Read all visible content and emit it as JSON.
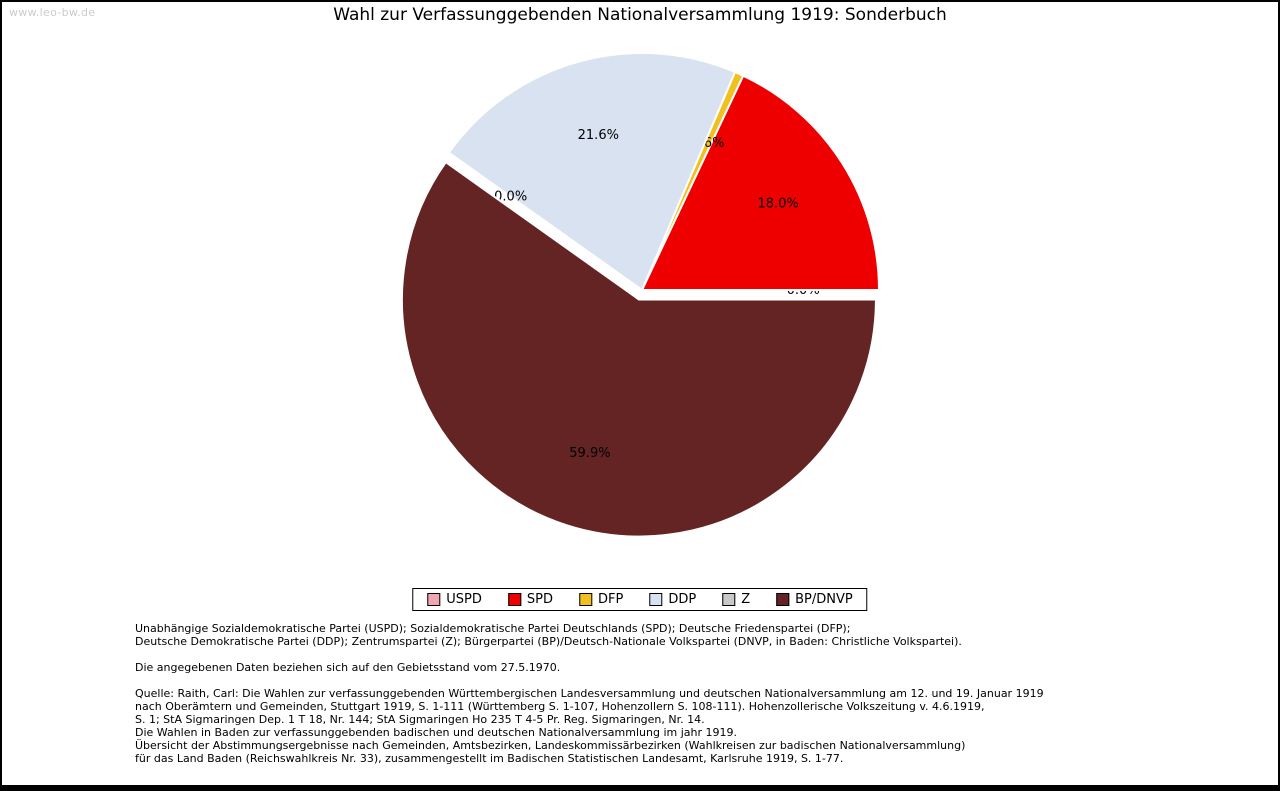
{
  "watermark": "www.leo-bw.de",
  "title": "Wahl zur Verfassunggebenden Nationalversammlung 1919: Sonderbuch",
  "chart_data": {
    "type": "pie",
    "title": "Wahl zur Verfassunggebenden Nationalversammlung 1919: Sonderbuch",
    "start_angle_deg": 0,
    "direction": "counterclockwise",
    "legend_position": "bottom",
    "slices": [
      {
        "label": "USPD",
        "value": 0.0,
        "pct_label": "0.0%",
        "color": "#f1a7b2",
        "explode": 0
      },
      {
        "label": "SPD",
        "value": 18.0,
        "pct_label": "18.0%",
        "color": "#ee0000",
        "explode": 0
      },
      {
        "label": "DFP",
        "value": 0.6,
        "pct_label": "0.6%",
        "color": "#f0c020",
        "explode": 0
      },
      {
        "label": "DDP",
        "value": 21.6,
        "pct_label": "21.6%",
        "color": "#d9e2f0",
        "explode": 0
      },
      {
        "label": "Z",
        "value": 0.0,
        "pct_label": "0.0%",
        "color": "#c8c8c8",
        "explode": 0
      },
      {
        "label": "BP/DNVP",
        "value": 59.9,
        "pct_label": "59.9%",
        "color": "#632423",
        "explode": 10
      }
    ]
  },
  "footer": {
    "party_note_lines": [
      "Unabhängige Sozialdemokratische Partei (USPD); Sozialdemokratische Partei Deutschlands (SPD); Deutsche Friedenspartei (DFP);",
      "Deutsche Demokratische Partei (DDP); Zentrumspartei (Z); Bürgerpartei (BP)/Deutsch-Nationale Volkspartei (DNVP, in Baden: Christliche Volkspartei)."
    ],
    "data_note": "Die angegebenen Daten beziehen sich auf den Gebietsstand vom 27.5.1970.",
    "source_lines": [
      "Quelle: Raith, Carl: Die Wahlen zur verfassunggebenden Württembergischen Landesversammlung und deutschen Nationalversammlung am 12. und 19. Januar 1919",
      "nach Oberämtern und Gemeinden, Stuttgart 1919, S. 1-111 (Württemberg S. 1-107, Hohenzollern S. 108-111). Hohenzollerische Volkszeitung v. 4.6.1919,",
      "S. 1; StA Sigmaringen Dep. 1 T 18, Nr. 144; StA Sigmaringen Ho 235 T 4-5 Pr. Reg. Sigmaringen, Nr. 14.",
      "Die Wahlen in Baden zur verfassunggebenden badischen und deutschen Nationalversammlung im jahr 1919.",
      "Übersicht der Abstimmungsergebnisse nach Gemeinden, Amtsbezirken, Landeskommissärbezirken (Wahlkreisen zur badischen Nationalversammlung)",
      "für das Land Baden (Reichswahlkreis Nr. 33), zusammengestellt im Badischen Statistischen Landesamt, Karlsruhe 1919, S. 1-77."
    ]
  }
}
